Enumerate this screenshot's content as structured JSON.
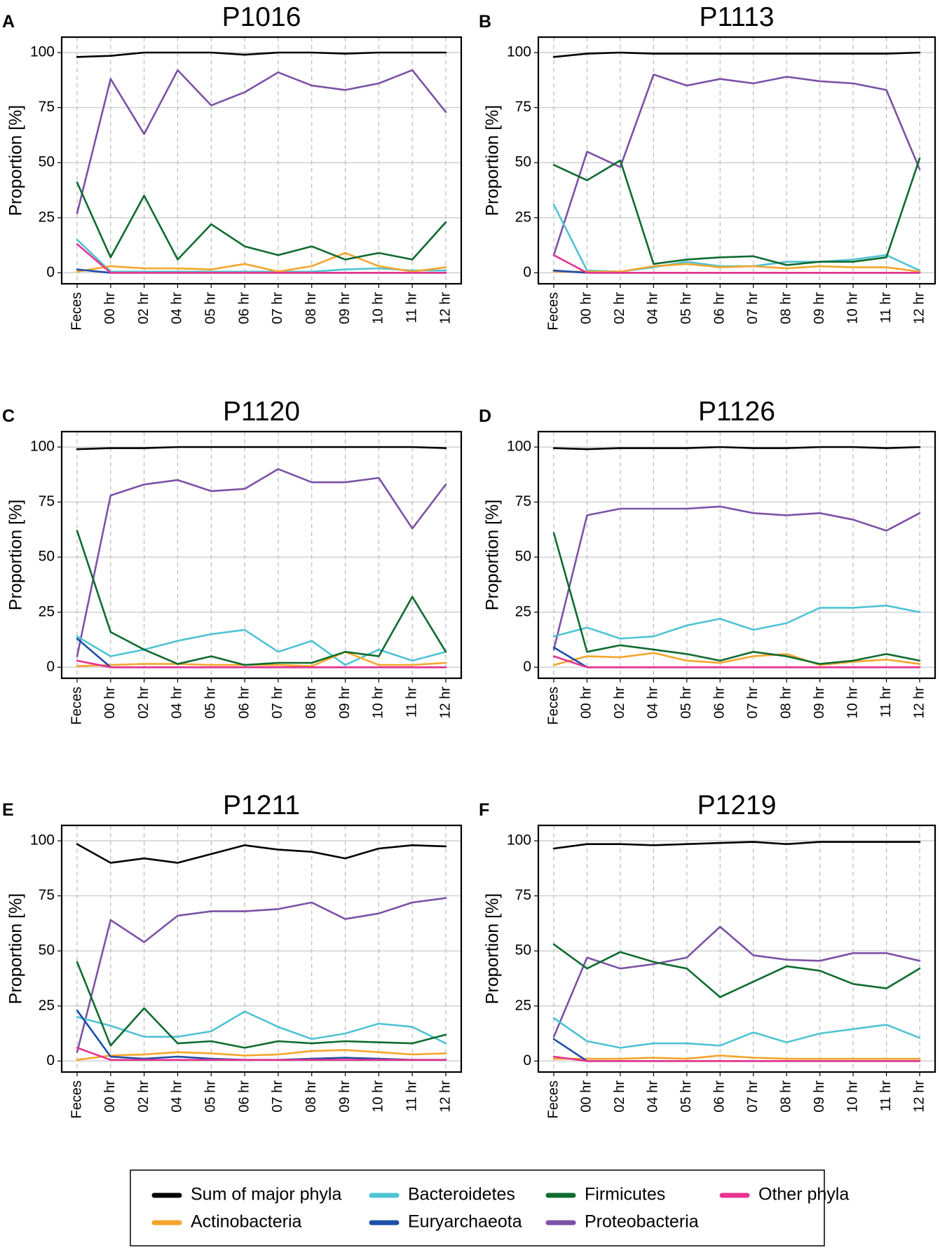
{
  "legend": {
    "items": [
      {
        "key": "sum",
        "label": "Sum of major phyla",
        "color": "#000000"
      },
      {
        "key": "bact",
        "label": "Bacteroidetes",
        "color": "#4FC3D4"
      },
      {
        "key": "firm",
        "label": "Firmicutes",
        "color": "#0E6B2F"
      },
      {
        "key": "other",
        "label": "Other phyla",
        "color": "#E8338F"
      },
      {
        "key": "actino",
        "label": "Actinobacteria",
        "color": "#F5A52C"
      },
      {
        "key": "eury",
        "label": "Euryarchaeota",
        "color": "#1C4FA8"
      },
      {
        "key": "proteo",
        "label": "Proteobacteria",
        "color": "#7B52A6"
      }
    ]
  },
  "chart_data": [
    {
      "type": "line",
      "panel_label": "A",
      "title": "P1016",
      "ylabel": "Proportion [%]",
      "categories": [
        "Feces",
        "00 hr",
        "02 hr",
        "04 hr",
        "05 hr",
        "06 hr",
        "07 hr",
        "08 hr",
        "09 hr",
        "10 hr",
        "11 hr",
        "12 hr"
      ],
      "yticks": [
        0,
        25,
        50,
        75,
        100
      ],
      "ylim": [
        -5,
        107
      ],
      "grid": true,
      "series": [
        {
          "name": "Sum of major phyla",
          "values": [
            98,
            98.5,
            100,
            100,
            100,
            99,
            100,
            100,
            99.5,
            100,
            100,
            100
          ]
        },
        {
          "name": "Proteobacteria",
          "values": [
            27,
            88,
            63,
            92,
            76,
            82,
            91,
            85,
            83,
            86,
            92,
            73
          ]
        },
        {
          "name": "Firmicutes",
          "values": [
            41,
            7,
            35,
            6,
            22,
            12,
            8,
            12,
            6,
            9,
            6,
            23
          ]
        },
        {
          "name": "Bacteroidetes",
          "values": [
            15,
            0.5,
            0.5,
            0.5,
            0.5,
            0.5,
            0.5,
            0.5,
            1.5,
            2,
            1,
            1
          ]
        },
        {
          "name": "Actinobacteria",
          "values": [
            0.5,
            3,
            2,
            2,
            1.5,
            4,
            0.5,
            3,
            9,
            3,
            0.5,
            2.5
          ]
        },
        {
          "name": "Euryarchaeota",
          "values": [
            1.5,
            0,
            0,
            0,
            0,
            0,
            0,
            0,
            0,
            0,
            0,
            0
          ]
        },
        {
          "name": "Other phyla",
          "values": [
            13,
            0,
            0,
            0,
            0,
            0,
            0,
            0,
            0,
            0,
            0,
            0
          ]
        }
      ]
    },
    {
      "type": "line",
      "panel_label": "B",
      "title": "P1113",
      "ylabel": "Proportion [%]",
      "categories": [
        "Feces",
        "00 hr",
        "02 hr",
        "04 hr",
        "05 hr",
        "06 hr",
        "07 hr",
        "08 hr",
        "09 hr",
        "10 hr",
        "11 hr",
        "12 hr"
      ],
      "yticks": [
        0,
        25,
        50,
        75,
        100
      ],
      "ylim": [
        -5,
        107
      ],
      "grid": true,
      "series": [
        {
          "name": "Sum of major phyla",
          "values": [
            98,
            99.5,
            100,
            99.5,
            99.5,
            99.5,
            99.5,
            99.5,
            99.5,
            99.5,
            99.5,
            100
          ]
        },
        {
          "name": "Proteobacteria",
          "values": [
            8,
            55,
            48,
            90,
            85,
            88,
            86,
            89,
            87,
            86,
            83,
            47
          ]
        },
        {
          "name": "Firmicutes",
          "values": [
            49,
            42,
            51,
            4,
            6,
            7,
            7.5,
            3.5,
            5,
            5,
            7,
            52
          ]
        },
        {
          "name": "Bacteroidetes",
          "values": [
            31,
            1,
            0.5,
            2.5,
            5,
            3,
            3,
            5,
            5,
            6,
            8,
            1
          ]
        },
        {
          "name": "Actinobacteria",
          "values": [
            0.5,
            0.5,
            0.5,
            3,
            4,
            2.5,
            3,
            2,
            3,
            2.5,
            2.5,
            0.5
          ]
        },
        {
          "name": "Euryarchaeota",
          "values": [
            1,
            0,
            0,
            0,
            0,
            0,
            0,
            0,
            0,
            0,
            0,
            0
          ]
        },
        {
          "name": "Other phyla",
          "values": [
            8,
            0,
            0,
            0,
            0,
            0,
            0,
            0,
            0,
            0,
            0,
            0
          ]
        }
      ]
    },
    {
      "type": "line",
      "panel_label": "C",
      "title": "P1120",
      "ylabel": "Proportion [%]",
      "categories": [
        "Feces",
        "00 hr",
        "02 hr",
        "04 hr",
        "05 hr",
        "06 hr",
        "07 hr",
        "08 hr",
        "09 hr",
        "10 hr",
        "11 hr",
        "12 hr"
      ],
      "yticks": [
        0,
        25,
        50,
        75,
        100
      ],
      "ylim": [
        -5,
        107
      ],
      "grid": true,
      "series": [
        {
          "name": "Sum of major phyla",
          "values": [
            99,
            99.5,
            99.5,
            100,
            100,
            100,
            100,
            100,
            100,
            100,
            100,
            99.5
          ]
        },
        {
          "name": "Proteobacteria",
          "values": [
            5,
            78,
            83,
            85,
            80,
            81,
            90,
            84,
            84,
            86,
            63,
            83
          ]
        },
        {
          "name": "Firmicutes",
          "values": [
            62,
            16,
            8,
            1.5,
            5,
            1,
            2,
            2,
            7,
            5,
            32,
            7
          ]
        },
        {
          "name": "Bacteroidetes",
          "values": [
            14,
            5,
            8,
            12,
            15,
            17,
            7,
            12,
            1,
            8,
            3,
            7
          ]
        },
        {
          "name": "Actinobacteria",
          "values": [
            0.5,
            1,
            1.5,
            1.5,
            1,
            1,
            1,
            0.5,
            7,
            1,
            1,
            2
          ]
        },
        {
          "name": "Euryarchaeota",
          "values": [
            13,
            0,
            0,
            0,
            0,
            0,
            0,
            0,
            0,
            0,
            0,
            0
          ]
        },
        {
          "name": "Other phyla",
          "values": [
            3,
            0,
            0,
            0,
            0,
            0,
            0,
            0,
            0,
            0,
            0,
            0
          ]
        }
      ]
    },
    {
      "type": "line",
      "panel_label": "D",
      "title": "P1126",
      "ylabel": "Proportion [%]",
      "categories": [
        "Feces",
        "00 hr",
        "02 hr",
        "04 hr",
        "05 hr",
        "06 hr",
        "07 hr",
        "08 hr",
        "09 hr",
        "10 hr",
        "11 hr",
        "12 hr"
      ],
      "yticks": [
        0,
        25,
        50,
        75,
        100
      ],
      "ylim": [
        -5,
        107
      ],
      "grid": true,
      "series": [
        {
          "name": "Sum of major phyla",
          "values": [
            99.5,
            99,
            99.5,
            99.5,
            99.5,
            100,
            99.5,
            99.5,
            100,
            100,
            99.5,
            100
          ]
        },
        {
          "name": "Proteobacteria",
          "values": [
            8,
            69,
            72,
            72,
            72,
            73,
            70,
            69,
            70,
            67,
            62,
            70
          ]
        },
        {
          "name": "Firmicutes",
          "values": [
            61,
            7,
            10,
            8,
            6,
            3,
            7,
            5,
            1.5,
            3,
            6,
            3
          ]
        },
        {
          "name": "Bacteroidetes",
          "values": [
            14,
            18,
            13,
            14,
            19,
            22,
            17,
            20,
            27,
            27,
            28,
            25
          ]
        },
        {
          "name": "Actinobacteria",
          "values": [
            1,
            5,
            4.5,
            6.5,
            3,
            2,
            5,
            6,
            1,
            2.5,
            3.5,
            1.5
          ]
        },
        {
          "name": "Euryarchaeota",
          "values": [
            9,
            0,
            0,
            0,
            0,
            0,
            0,
            0,
            0,
            0,
            0,
            0
          ]
        },
        {
          "name": "Other phyla",
          "values": [
            5,
            0,
            0,
            0,
            0,
            0,
            0,
            0,
            0,
            0,
            0,
            0
          ]
        }
      ]
    },
    {
      "type": "line",
      "panel_label": "E",
      "title": "P1211",
      "ylabel": "Proportion [%]",
      "categories": [
        "Feces",
        "00 hr",
        "02 hr",
        "04 hr",
        "05 hr",
        "06 hr",
        "07 hr",
        "08 hr",
        "09 hr",
        "10 hr",
        "11 hr",
        "12 hr"
      ],
      "yticks": [
        0,
        25,
        50,
        75,
        100
      ],
      "ylim": [
        -5,
        107
      ],
      "grid": true,
      "series": [
        {
          "name": "Sum of major phyla",
          "values": [
            98.5,
            90,
            92,
            90,
            94,
            98,
            96,
            95,
            92,
            96.5,
            98,
            97.5
          ]
        },
        {
          "name": "Proteobacteria",
          "values": [
            4,
            64,
            54,
            66,
            68,
            68,
            69,
            72,
            64.5,
            67,
            72,
            74
          ]
        },
        {
          "name": "Firmicutes",
          "values": [
            45,
            7,
            24,
            8,
            9,
            6,
            9,
            8,
            9,
            8.5,
            8,
            12
          ]
        },
        {
          "name": "Bacteroidetes",
          "values": [
            20,
            16,
            11,
            11,
            13.5,
            22.5,
            15.5,
            10,
            12.5,
            17,
            15.5,
            8
          ]
        },
        {
          "name": "Actinobacteria",
          "values": [
            0.5,
            2.5,
            3,
            4,
            3.5,
            2.5,
            3,
            4.5,
            5,
            4,
            3,
            3.5
          ]
        },
        {
          "name": "Euryarchaeota",
          "values": [
            23,
            2,
            1,
            2,
            1,
            0.5,
            0.5,
            1,
            1.5,
            1,
            0.5,
            0.5
          ]
        },
        {
          "name": "Other phyla",
          "values": [
            6,
            0.5,
            0.5,
            0.5,
            0.5,
            0.5,
            0.5,
            0.5,
            0.5,
            0.5,
            0.5,
            0.5
          ]
        }
      ]
    },
    {
      "type": "line",
      "panel_label": "F",
      "title": "P1219",
      "ylabel": "Proportion [%]",
      "categories": [
        "Feces",
        "00 hr",
        "02 hr",
        "04 hr",
        "05 hr",
        "06 hr",
        "07 hr",
        "08 hr",
        "09 hr",
        "10 hr",
        "11 hr",
        "12 hr"
      ],
      "yticks": [
        0,
        25,
        50,
        75,
        100
      ],
      "ylim": [
        -5,
        107
      ],
      "grid": true,
      "series": [
        {
          "name": "Sum of major phyla",
          "values": [
            96.5,
            98.5,
            98.5,
            98,
            98.5,
            99,
            99.5,
            98.5,
            99.5,
            99.5,
            99.5,
            99.5
          ]
        },
        {
          "name": "Proteobacteria",
          "values": [
            11,
            47,
            42,
            44,
            47,
            61,
            48,
            46,
            45.5,
            49,
            49,
            45.5
          ]
        },
        {
          "name": "Firmicutes",
          "values": [
            53,
            42,
            49.5,
            45,
            42,
            29,
            36,
            43,
            41,
            35,
            33,
            42
          ]
        },
        {
          "name": "Bacteroidetes",
          "values": [
            19.5,
            9,
            6,
            8,
            8,
            7,
            13,
            8.5,
            12.5,
            14.5,
            16.5,
            10.5
          ]
        },
        {
          "name": "Actinobacteria",
          "values": [
            1,
            1,
            1,
            1.5,
            1,
            2.5,
            1.5,
            1,
            1,
            1,
            1,
            1
          ]
        },
        {
          "name": "Euryarchaeota",
          "values": [
            10,
            0,
            0,
            0,
            0,
            0,
            0,
            0,
            0,
            0,
            0,
            0
          ]
        },
        {
          "name": "Other phyla",
          "values": [
            2,
            0,
            0,
            0,
            0,
            0,
            0,
            0,
            0,
            0,
            0,
            0
          ]
        }
      ]
    }
  ]
}
